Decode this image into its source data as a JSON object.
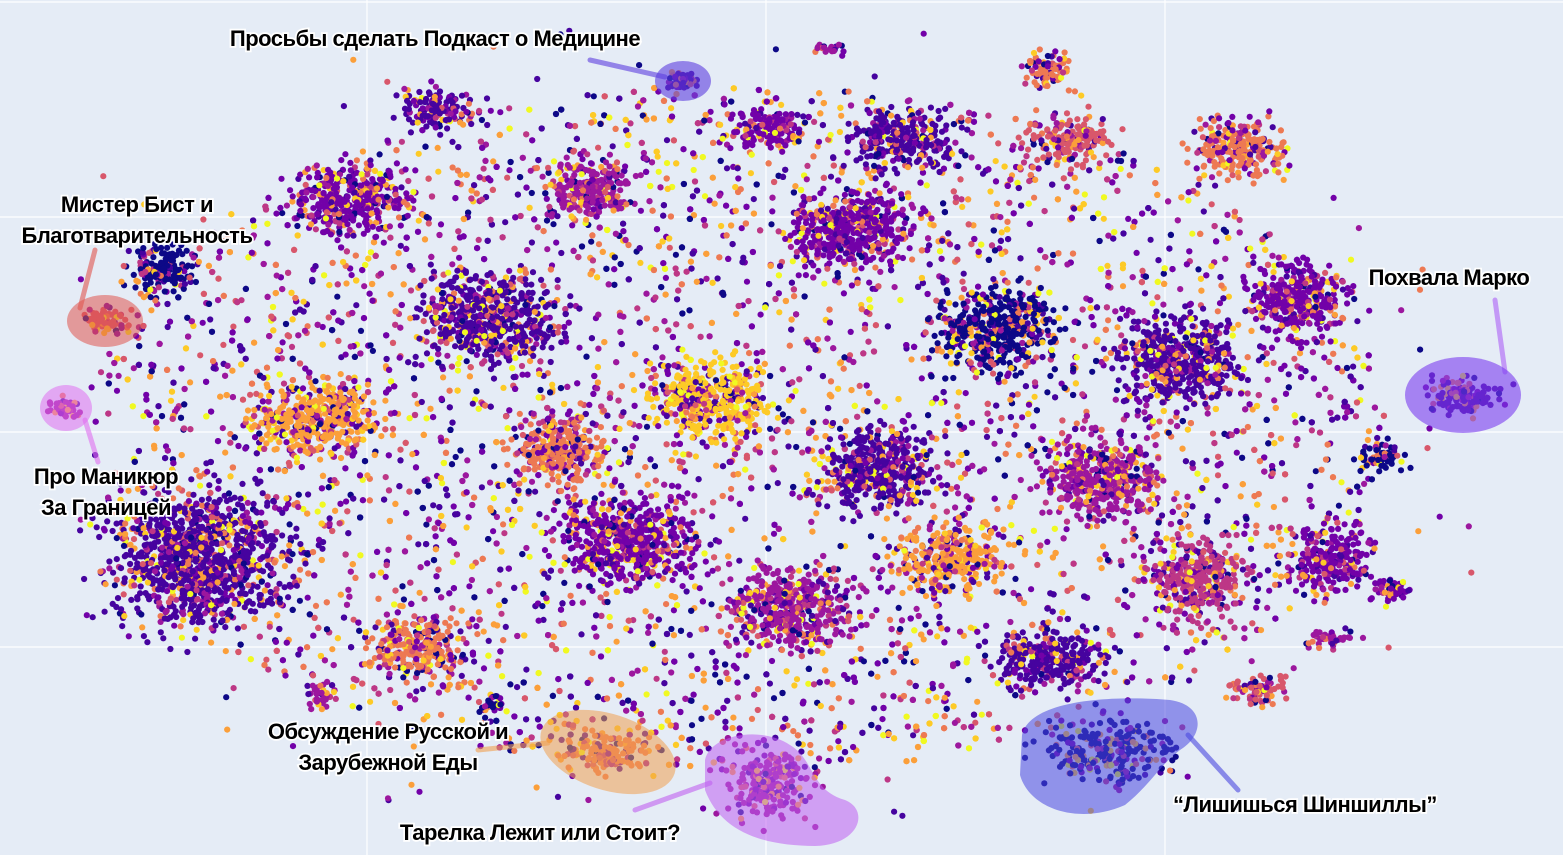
{
  "chart_data": {
    "type": "scatter",
    "title": "",
    "xlabel": "",
    "ylabel": "",
    "grid": true,
    "background": "#e5ecf6",
    "colorscale": [
      "#0d0887",
      "#46039f",
      "#7201a8",
      "#9c179e",
      "#bd3786",
      "#d8576b",
      "#ed7953",
      "#fb9f3a",
      "#fdca26",
      "#f0f921"
    ],
    "clusters": [
      {
        "name": "Просьбы сделать Подкаст о Медицине",
        "color": "#5b3ee0"
      },
      {
        "name": "Мистер Бист и Благотварительность",
        "color": "#e0554f"
      },
      {
        "name": "Похвала Марко",
        "color": "#7a3cf0"
      },
      {
        "name": "Про Маникюр За Границей",
        "color": "#e070f0"
      },
      {
        "name": "Обсуждение Русской и Зарубежной Еды",
        "color": "#f0a050"
      },
      {
        "name": "Тарелка Лежит или Стоит?",
        "color": "#c060f0"
      },
      {
        "name": "“Лишишься Шиншиллы”",
        "color": "#4a48e0"
      }
    ]
  },
  "annotations": {
    "podcast": "Просьбы сделать Подкаст о Медицине",
    "beast_line1": "Мистер Бист и",
    "beast_line2": "Благотварительность",
    "marko": "Похвала Марко",
    "manicure_line1": "Про Маникюр",
    "manicure_line2": "За Границей",
    "food_line1": "Обсуждение Русской и",
    "food_line2": "Зарубежной Еды",
    "plate": "Тарелка Лежит или Стоит?",
    "chinchilla": "“Лишишься Шиншиллы”"
  }
}
